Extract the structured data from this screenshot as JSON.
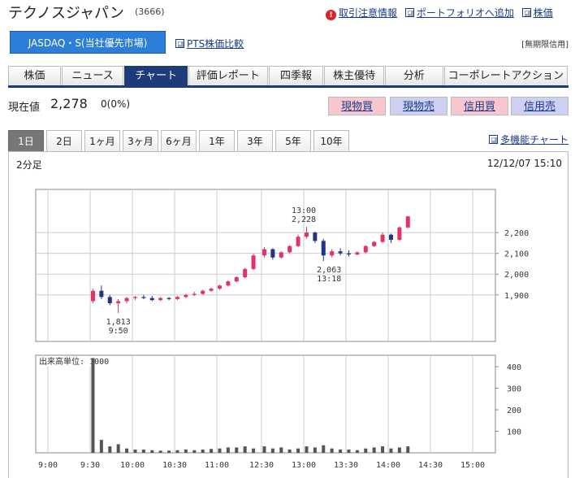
{
  "header": {
    "title": "テクノスジャパン",
    "code": "(3666)",
    "links": [
      "取引注意情報",
      "ポートフォリオへ追加",
      "株価"
    ]
  },
  "market": {
    "button": "JASDAQ・S(当社優先市場)",
    "pts_link": "PTS株価比較",
    "credit_note": "[無期限信用]"
  },
  "tabs": {
    "items": [
      "株価",
      "ニュース",
      "チャート",
      "評価レポート",
      "四季報",
      "株主優待",
      "分析",
      "コーポレートアクション"
    ],
    "active": 2
  },
  "quote": {
    "label": "現在値",
    "price": "2,278",
    "change": "0(0%)"
  },
  "trade_buttons": [
    "現物買",
    "現物売",
    "信用買",
    "信用売"
  ],
  "periods": {
    "items": [
      "1日",
      "2日",
      "1ヶ月",
      "3ヶ月",
      "6ヶ月",
      "1年",
      "3年",
      "5年",
      "10年"
    ],
    "active": 0
  },
  "multi_chart_link": "多機能チャート",
  "chart_data": {
    "type": "candlestick",
    "interval": "2分足",
    "date": "12/12/07 15:10",
    "x": [
      "9:32",
      "9:38",
      "9:44",
      "9:50",
      "9:56",
      "10:02",
      "10:08",
      "10:14",
      "10:20",
      "10:26",
      "10:32",
      "10:38",
      "10:44",
      "10:50",
      "10:56",
      "11:02",
      "11:08",
      "11:14",
      "11:20",
      "11:26",
      "12:32",
      "12:38",
      "12:44",
      "12:50",
      "12:56",
      "13:02",
      "13:08",
      "13:14",
      "13:20",
      "13:26",
      "13:32",
      "13:38",
      "13:44",
      "13:50",
      "13:56",
      "14:02",
      "14:08",
      "14:14"
    ],
    "open": [
      1870,
      1920,
      1890,
      1860,
      1870,
      1885,
      1890,
      1885,
      1875,
      1885,
      1880,
      1890,
      1900,
      1905,
      1920,
      1930,
      1945,
      1965,
      1985,
      2025,
      2090,
      2120,
      2080,
      2105,
      2135,
      2180,
      2200,
      2160,
      2090,
      2110,
      2100,
      2095,
      2105,
      2135,
      2155,
      2190,
      2165,
      2225
    ],
    "high": [
      1930,
      1945,
      1900,
      1880,
      1890,
      1895,
      1900,
      1895,
      1890,
      1890,
      1895,
      1905,
      1915,
      1925,
      1935,
      1950,
      1970,
      1990,
      2030,
      2100,
      2130,
      2125,
      2110,
      2140,
      2190,
      2228,
      2205,
      2170,
      2120,
      2125,
      2115,
      2110,
      2140,
      2160,
      2200,
      2195,
      2230,
      2280
    ],
    "low": [
      1860,
      1880,
      1850,
      1813,
      1860,
      1875,
      1880,
      1870,
      1870,
      1875,
      1875,
      1885,
      1895,
      1900,
      1915,
      1925,
      1940,
      1960,
      1980,
      2020,
      2080,
      2070,
      2075,
      2100,
      2130,
      2170,
      2150,
      2063,
      2080,
      2090,
      2085,
      2090,
      2100,
      2130,
      2150,
      2150,
      2160,
      2220
    ],
    "close": [
      1920,
      1890,
      1860,
      1870,
      1885,
      1890,
      1885,
      1875,
      1885,
      1880,
      1890,
      1900,
      1905,
      1920,
      1930,
      1945,
      1965,
      1985,
      2025,
      2090,
      2120,
      2080,
      2105,
      2135,
      2180,
      2200,
      2160,
      2090,
      2110,
      2100,
      2095,
      2105,
      2135,
      2155,
      2190,
      2165,
      2225,
      2278
    ],
    "up_color": "#e0336a",
    "down_color": "#24338a",
    "ylim": [
      1676,
      2408
    ],
    "yticks": [
      {
        "value": 1900,
        "label": "1,900"
      },
      {
        "value": 2000,
        "label": "2,000"
      },
      {
        "value": 2100,
        "label": "2,100"
      },
      {
        "value": 2200,
        "label": "2,200"
      }
    ],
    "xticks": [
      "9:00",
      "9:30",
      "10:00",
      "10:30",
      "11:00",
      "12:30",
      "13:00",
      "13:30",
      "14:00",
      "14:30",
      "15:00"
    ],
    "grid": true,
    "annotations": [
      {
        "time": "13:00",
        "price": "2,228",
        "below": false
      },
      {
        "time": "13:18",
        "price": "2,063",
        "below": true
      },
      {
        "time": "9:50",
        "price": "1,813",
        "below": true
      }
    ],
    "volume": {
      "label": "出来高単位: 1000",
      "values": [
        440,
        60,
        30,
        40,
        20,
        15,
        15,
        12,
        10,
        10,
        12,
        15,
        12,
        15,
        18,
        20,
        25,
        25,
        30,
        20,
        30,
        20,
        25,
        15,
        20,
        30,
        25,
        35,
        20,
        15,
        15,
        12,
        20,
        25,
        30,
        20,
        25,
        30
      ],
      "color": "#555555",
      "ylim": [
        0,
        453
      ],
      "yticks": [
        100,
        200,
        300,
        400
      ]
    }
  }
}
